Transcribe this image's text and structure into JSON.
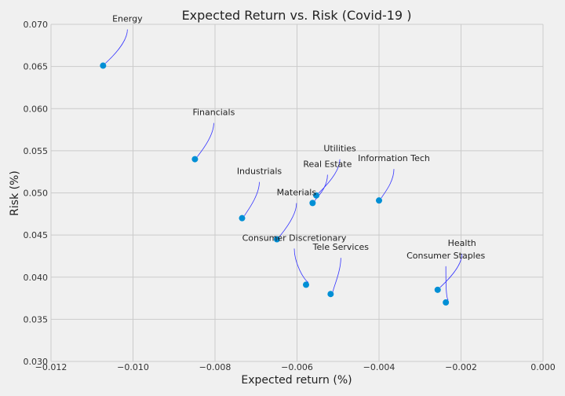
{
  "chart_data": {
    "type": "scatter",
    "title": "Expected Return vs. Risk (Covid-19 )",
    "xlabel": "Expected return (%)",
    "ylabel": "Risk (%)",
    "xlim": [
      -0.012,
      0.0
    ],
    "ylim": [
      0.03,
      0.07
    ],
    "x_ticks": [
      "−0.012",
      "−0.010",
      "−0.008",
      "−0.006",
      "−0.004",
      "−0.002",
      "0.000"
    ],
    "y_ticks": [
      "0.030",
      "0.035",
      "0.040",
      "0.045",
      "0.050",
      "0.055",
      "0.060",
      "0.065",
      "0.070"
    ],
    "grid": true,
    "point_color": "#008fd5",
    "annotation_color": "#3333ff",
    "points": [
      {
        "label": "Energy",
        "x": -0.01073,
        "y": 0.0651
      },
      {
        "label": "Financials",
        "x": -0.00849,
        "y": 0.054
      },
      {
        "label": "Industrials",
        "x": -0.00734,
        "y": 0.047
      },
      {
        "label": "Materials",
        "x": -0.00649,
        "y": 0.0445
      },
      {
        "label": "Real Estate",
        "x": -0.00562,
        "y": 0.0488
      },
      {
        "label": "Utilities",
        "x": -0.00553,
        "y": 0.0497
      },
      {
        "label": "Information Tech",
        "x": -0.004,
        "y": 0.0491
      },
      {
        "label": "Consumer Discretionary",
        "x": -0.00578,
        "y": 0.0391
      },
      {
        "label": "Tele Services",
        "x": -0.00518,
        "y": 0.038
      },
      {
        "label": "Health",
        "x": -0.00257,
        "y": 0.0385
      },
      {
        "label": "Consumer Staples",
        "x": -0.00237,
        "y": 0.037
      }
    ]
  }
}
